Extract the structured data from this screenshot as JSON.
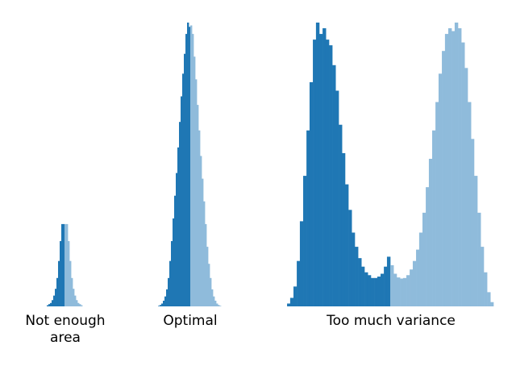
{
  "colors": {
    "dark": "#1f77b4",
    "light": "#8fbbdb"
  },
  "chart_data": [
    {
      "type": "bar",
      "label_lines": [
        "Not enough",
        "area"
      ],
      "x_range": [
        -5,
        5
      ],
      "y_range": [
        0,
        1
      ],
      "split_at": 0,
      "bins": 24,
      "x": [
        -4.79,
        -4.375,
        -3.96,
        -3.54,
        -3.125,
        -2.71,
        -2.29,
        -1.875,
        -1.46,
        -1.04,
        -0.625,
        -0.21,
        0.21,
        0.625,
        1.04,
        1.46,
        1.875,
        2.29,
        2.71,
        3.125,
        3.54,
        3.96,
        4.375,
        4.79
      ],
      "values": [
        0.0,
        0.004,
        0.008,
        0.012,
        0.022,
        0.038,
        0.062,
        0.1,
        0.16,
        0.23,
        0.29,
        0.29,
        0.29,
        0.29,
        0.23,
        0.16,
        0.1,
        0.062,
        0.038,
        0.022,
        0.012,
        0.008,
        0.004,
        0.0
      ]
    },
    {
      "type": "bar",
      "label_lines": [
        "Optimal"
      ],
      "x_range": [
        -5,
        5
      ],
      "y_range": [
        0,
        1
      ],
      "split_at": 0,
      "bins": 40,
      "x": [
        -4.875,
        -4.625,
        -4.375,
        -4.125,
        -3.875,
        -3.625,
        -3.375,
        -3.125,
        -2.875,
        -2.625,
        -2.375,
        -2.125,
        -1.875,
        -1.625,
        -1.375,
        -1.125,
        -0.875,
        -0.625,
        -0.375,
        -0.125,
        0.125,
        0.375,
        0.625,
        0.875,
        1.125,
        1.375,
        1.625,
        1.875,
        2.125,
        2.375,
        2.625,
        2.875,
        3.125,
        3.375,
        3.625,
        3.875,
        4.125,
        4.375,
        4.625,
        4.875
      ],
      "values": [
        0.002,
        0.005,
        0.01,
        0.02,
        0.035,
        0.06,
        0.1,
        0.16,
        0.23,
        0.31,
        0.39,
        0.47,
        0.56,
        0.65,
        0.74,
        0.82,
        0.89,
        0.96,
        1.0,
        0.985,
        0.99,
        0.96,
        0.88,
        0.8,
        0.71,
        0.62,
        0.53,
        0.45,
        0.37,
        0.29,
        0.21,
        0.15,
        0.1,
        0.06,
        0.035,
        0.02,
        0.01,
        0.005,
        0.002,
        0.0
      ]
    },
    {
      "type": "bar",
      "label_lines": [
        "Too much variance"
      ],
      "x_range": [
        -5,
        5
      ],
      "y_range": [
        0,
        1
      ],
      "split_at": 0,
      "bins": 64,
      "x": [
        -4.92,
        -4.77,
        -4.61,
        -4.45,
        -4.3,
        -4.14,
        -3.98,
        -3.83,
        -3.67,
        -3.52,
        -3.36,
        -3.2,
        -3.05,
        -2.89,
        -2.73,
        -2.58,
        -2.42,
        -2.27,
        -2.11,
        -1.95,
        -1.8,
        -1.64,
        -1.48,
        -1.33,
        -1.17,
        -1.02,
        -0.86,
        -0.7,
        -0.55,
        -0.39,
        -0.23,
        -0.08,
        0.08,
        0.23,
        0.39,
        0.55,
        0.7,
        0.86,
        1.02,
        1.17,
        1.33,
        1.48,
        1.64,
        1.8,
        1.95,
        2.11,
        2.27,
        2.42,
        2.58,
        2.73,
        2.89,
        3.05,
        3.2,
        3.36,
        3.52,
        3.67,
        3.83,
        3.98,
        4.14,
        4.3,
        4.45,
        4.61,
        4.77,
        4.92
      ],
      "values": [
        0.01,
        0.03,
        0.07,
        0.16,
        0.3,
        0.46,
        0.62,
        0.79,
        0.94,
        1.0,
        0.96,
        0.98,
        0.94,
        0.92,
        0.85,
        0.76,
        0.64,
        0.54,
        0.43,
        0.34,
        0.26,
        0.21,
        0.17,
        0.14,
        0.12,
        0.11,
        0.1,
        0.1,
        0.105,
        0.115,
        0.14,
        0.175,
        0.145,
        0.115,
        0.102,
        0.098,
        0.1,
        0.11,
        0.13,
        0.16,
        0.2,
        0.26,
        0.33,
        0.42,
        0.52,
        0.62,
        0.72,
        0.82,
        0.9,
        0.96,
        0.98,
        0.97,
        1.0,
        0.98,
        0.93,
        0.84,
        0.72,
        0.59,
        0.46,
        0.33,
        0.21,
        0.12,
        0.05,
        0.015
      ]
    }
  ]
}
